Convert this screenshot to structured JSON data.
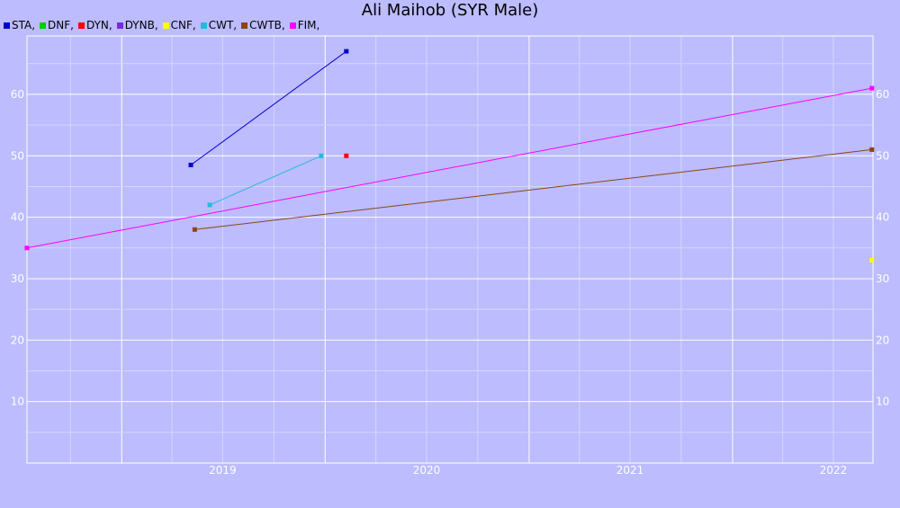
{
  "chart_data": {
    "type": "line",
    "title": "Ali Maihob (SYR Male)",
    "xlabel": "",
    "ylabel": "",
    "x_ticks": [
      "2019",
      "2020",
      "2021",
      "2022"
    ],
    "y_ticks": [
      10,
      20,
      30,
      40,
      50,
      60
    ],
    "xlim": [
      "2018-07-15",
      "2022-09-10"
    ],
    "ylim": [
      0,
      69.5
    ],
    "grid": true,
    "legend_position": "top-left",
    "series": [
      {
        "name": "STA",
        "legend_label": "STA,",
        "color": "#0000cc",
        "points": [
          {
            "x": "2019-05-05",
            "y": 48.5
          },
          {
            "x": "2020-02-08",
            "y": 67
          }
        ]
      },
      {
        "name": "DNF",
        "legend_label": "DNF,",
        "color": "#00cc00",
        "points": []
      },
      {
        "name": "DYN",
        "legend_label": "DYN,",
        "color": "#ff0000",
        "points": [
          {
            "x": "2020-02-08",
            "y": 50
          }
        ]
      },
      {
        "name": "DYNB",
        "legend_label": "DYNB,",
        "color": "#7a2bd9",
        "points": []
      },
      {
        "name": "CNF",
        "legend_label": "CNF,",
        "color": "#ffff00",
        "points": [
          {
            "x": "2022-09-08",
            "y": 33
          }
        ]
      },
      {
        "name": "CWT",
        "legend_label": "CWT,",
        "color": "#22bbdd",
        "points": [
          {
            "x": "2019-06-08",
            "y": 42
          },
          {
            "x": "2019-12-25",
            "y": 50
          }
        ]
      },
      {
        "name": "CWTB",
        "legend_label": "CWTB,",
        "color": "#8b4513",
        "points": [
          {
            "x": "2019-05-12",
            "y": 38
          },
          {
            "x": "2022-09-08",
            "y": 51
          }
        ]
      },
      {
        "name": "FIM",
        "legend_label": "FIM,",
        "color": "#ff00ff",
        "points": [
          {
            "x": "2018-07-15",
            "y": 35
          },
          {
            "x": "2022-09-08",
            "y": 61
          }
        ]
      }
    ]
  }
}
